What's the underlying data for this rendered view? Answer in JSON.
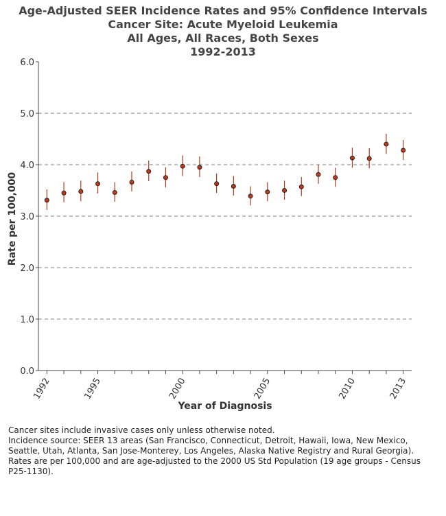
{
  "titles": [
    "Age-Adjusted SEER Incidence Rates and 95% Confidence Intervals",
    "Cancer Site: Acute Myeloid Leukemia",
    "All Ages, All Races, Both Sexes",
    "1992-2013"
  ],
  "chart_data": {
    "type": "scatter",
    "title": "Age-Adjusted SEER Incidence Rates and 95% Confidence Intervals",
    "xlabel": "Year of Diagnosis",
    "ylabel": "Rate per 100,000",
    "xlim": [
      1991.5,
      2013.5
    ],
    "ylim": [
      0,
      6
    ],
    "yticks": [
      "0.0",
      "1.0",
      "2.0",
      "3.0",
      "4.0",
      "5.0",
      "6.0"
    ],
    "xticks": [
      1992,
      1995,
      2000,
      2005,
      2010,
      2013
    ],
    "grid": "horizontal dashed",
    "series": [
      {
        "points": [
          {
            "x": 1992,
            "y": 3.31,
            "lo": 3.12,
            "hi": 3.52
          },
          {
            "x": 1993,
            "y": 3.45,
            "lo": 3.27,
            "hi": 3.66
          },
          {
            "x": 1994,
            "y": 3.48,
            "lo": 3.29,
            "hi": 3.69
          },
          {
            "x": 1995,
            "y": 3.63,
            "lo": 3.44,
            "hi": 3.85
          },
          {
            "x": 1996,
            "y": 3.46,
            "lo": 3.28,
            "hi": 3.66
          },
          {
            "x": 1997,
            "y": 3.66,
            "lo": 3.48,
            "hi": 3.87
          },
          {
            "x": 1998,
            "y": 3.87,
            "lo": 3.68,
            "hi": 4.08
          },
          {
            "x": 1999,
            "y": 3.75,
            "lo": 3.56,
            "hi": 3.95
          },
          {
            "x": 2000,
            "y": 3.97,
            "lo": 3.78,
            "hi": 4.18
          },
          {
            "x": 2001,
            "y": 3.95,
            "lo": 3.76,
            "hi": 4.16
          },
          {
            "x": 2002,
            "y": 3.63,
            "lo": 3.45,
            "hi": 3.83
          },
          {
            "x": 2003,
            "y": 3.58,
            "lo": 3.4,
            "hi": 3.78
          },
          {
            "x": 2004,
            "y": 3.39,
            "lo": 3.21,
            "hi": 3.58
          },
          {
            "x": 2005,
            "y": 3.47,
            "lo": 3.29,
            "hi": 3.66
          },
          {
            "x": 2006,
            "y": 3.5,
            "lo": 3.32,
            "hi": 3.69
          },
          {
            "x": 2007,
            "y": 3.57,
            "lo": 3.39,
            "hi": 3.76
          },
          {
            "x": 2008,
            "y": 3.81,
            "lo": 3.63,
            "hi": 4.0
          },
          {
            "x": 2009,
            "y": 3.75,
            "lo": 3.57,
            "hi": 3.94
          },
          {
            "x": 2010,
            "y": 4.13,
            "lo": 3.94,
            "hi": 4.33
          },
          {
            "x": 2011,
            "y": 4.12,
            "lo": 3.93,
            "hi": 4.32
          },
          {
            "x": 2012,
            "y": 4.4,
            "lo": 4.21,
            "hi": 4.6
          },
          {
            "x": 2013,
            "y": 4.28,
            "lo": 4.09,
            "hi": 4.48
          }
        ]
      }
    ]
  },
  "colors": {
    "point_fill": "#c0391b",
    "point_stroke": "#222222",
    "error_bar": "#b03a1a",
    "grid": "#7f7f7f",
    "axis": "#444444"
  },
  "footnotes": [
    "Cancer sites include invasive cases only unless otherwise noted.",
    "Incidence source: SEER 13 areas (San Francisco, Connecticut, Detroit, Hawaii, Iowa, New Mexico, Seattle, Utah, Atlanta, San Jose-Monterey, Los Angeles, Alaska Native Registry and Rural Georgia).",
    "Rates are per 100,000 and are age-adjusted to the 2000 US Std Population (19 age groups - Census P25-1130)."
  ]
}
